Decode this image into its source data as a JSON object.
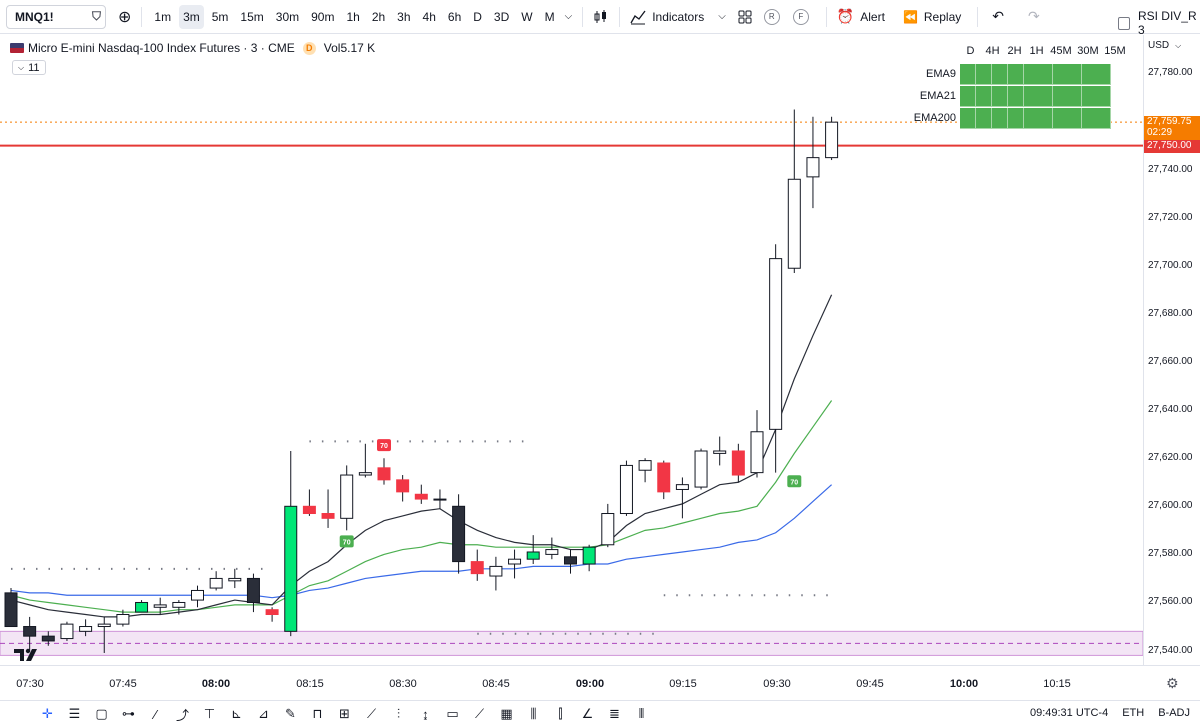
{
  "toolbar": {
    "symbol": "MNQ1!",
    "intervals": [
      "1m",
      "3m",
      "5m",
      "15m",
      "30m",
      "90m",
      "1h",
      "2h",
      "3h",
      "4h",
      "6h",
      "D",
      "3D",
      "W",
      "M"
    ],
    "active_interval": "3m",
    "indicators_label": "Indicators",
    "alert_label": "Alert",
    "replay_label": "Replay",
    "badge_r": "R",
    "badge_f": "F",
    "layout_label": "RSI DIV_R 3"
  },
  "legend": {
    "title": "Micro E-mini Nasdaq-100 Index Futures · 3 · CME",
    "badge": "D",
    "volume": "Vol",
    "volume_value": "5.17 K",
    "sub": "11"
  },
  "timeframe_header": [
    "D",
    "4H",
    "2H",
    "1H",
    "45M",
    "30M",
    "15M"
  ],
  "ema_table": [
    {
      "label": "EMA9",
      "status": "bullish"
    },
    {
      "label": "EMA21",
      "status": "bullish"
    },
    {
      "label": "EMA200",
      "status": "bullish"
    }
  ],
  "price_scale": {
    "currency": "USD",
    "labels": [
      "27,780.00",
      "27,740.00",
      "27,720.00",
      "27,700.00",
      "27,680.00",
      "27,660.00",
      "27,640.00",
      "27,620.00",
      "27,600.00",
      "27,580.00",
      "27,560.00",
      "27,540.00"
    ],
    "current_price": "27,759.75",
    "countdown": "02:29",
    "level_price": "27,750.00",
    "current_color": "#f57c00",
    "level_color": "#e53935"
  },
  "time_axis": {
    "labels": [
      {
        "text": "07:30",
        "bold": false
      },
      {
        "text": "07:45",
        "bold": false
      },
      {
        "text": "08:00",
        "bold": true
      },
      {
        "text": "08:15",
        "bold": false
      },
      {
        "text": "08:30",
        "bold": false
      },
      {
        "text": "08:45",
        "bold": false
      },
      {
        "text": "09:00",
        "bold": true
      },
      {
        "text": "09:15",
        "bold": false
      },
      {
        "text": "09:30",
        "bold": false
      },
      {
        "text": "09:45",
        "bold": false
      },
      {
        "text": "10:00",
        "bold": true
      },
      {
        "text": "10:15",
        "bold": false
      }
    ]
  },
  "status_bar": {
    "clock": "09:49:31 UTC-4",
    "session": "ETH",
    "adjustment": "B-ADJ"
  },
  "rsi_marker_label": "70",
  "chart_data": {
    "type": "candlestick",
    "interval": "3m",
    "candles": [
      {
        "o": 27564,
        "h": 27566,
        "l": 27550,
        "c": 27550,
        "color": "bear"
      },
      {
        "o": 27550,
        "h": 27554,
        "l": 27540,
        "c": 27546,
        "color": "bear"
      },
      {
        "o": 27546,
        "h": 27548,
        "l": 27542,
        "c": 27544,
        "color": "bear"
      },
      {
        "o": 27545,
        "h": 27552,
        "l": 27544,
        "c": 27551,
        "color": "bull"
      },
      {
        "o": 27548,
        "h": 27553,
        "l": 27546,
        "c": 27550,
        "color": "bull"
      },
      {
        "o": 27550,
        "h": 27554,
        "l": 27539,
        "c": 27551,
        "color": "bull"
      },
      {
        "o": 27551,
        "h": 27557,
        "l": 27550,
        "c": 27555,
        "color": "bull"
      },
      {
        "o": 27556,
        "h": 27561,
        "l": 27556,
        "c": 27560,
        "color": "bullgreen"
      },
      {
        "o": 27558,
        "h": 27562,
        "l": 27555,
        "c": 27559,
        "color": "bull"
      },
      {
        "o": 27558,
        "h": 27561,
        "l": 27555,
        "c": 27560,
        "color": "bull"
      },
      {
        "o": 27561,
        "h": 27567,
        "l": 27558,
        "c": 27565,
        "color": "bull"
      },
      {
        "o": 27566,
        "h": 27573,
        "l": 27565,
        "c": 27570,
        "color": "bull"
      },
      {
        "o": 27569,
        "h": 27574,
        "l": 27566,
        "c": 27570,
        "color": "bull"
      },
      {
        "o": 27570,
        "h": 27572,
        "l": 27556,
        "c": 27560,
        "color": "bear"
      },
      {
        "o": 27557,
        "h": 27558,
        "l": 27552,
        "c": 27555,
        "color": "bearred"
      },
      {
        "o": 27548,
        "h": 27623,
        "l": 27546,
        "c": 27600,
        "color": "bullgreen"
      },
      {
        "o": 27600,
        "h": 27607,
        "l": 27596,
        "c": 27597,
        "color": "bearred"
      },
      {
        "o": 27597,
        "h": 27607,
        "l": 27591,
        "c": 27595,
        "color": "bearred"
      },
      {
        "o": 27595,
        "h": 27617,
        "l": 27590,
        "c": 27613,
        "color": "bull"
      },
      {
        "o": 27614,
        "h": 27626,
        "l": 27612,
        "c": 27613,
        "color": "bull"
      },
      {
        "o": 27616,
        "h": 27620,
        "l": 27609,
        "c": 27611,
        "color": "bearred"
      },
      {
        "o": 27611,
        "h": 27613,
        "l": 27602,
        "c": 27606,
        "color": "bearred"
      },
      {
        "o": 27605,
        "h": 27609,
        "l": 27601,
        "c": 27603,
        "color": "bearred"
      },
      {
        "o": 27603,
        "h": 27607,
        "l": 27599,
        "c": 27603,
        "color": "bull"
      },
      {
        "o": 27600,
        "h": 27605,
        "l": 27572,
        "c": 27577,
        "color": "bear"
      },
      {
        "o": 27577,
        "h": 27582,
        "l": 27569,
        "c": 27572,
        "color": "bearred"
      },
      {
        "o": 27571,
        "h": 27579,
        "l": 27565,
        "c": 27575,
        "color": "bull"
      },
      {
        "o": 27576,
        "h": 27582,
        "l": 27570,
        "c": 27578,
        "color": "bull"
      },
      {
        "o": 27578,
        "h": 27588,
        "l": 27576,
        "c": 27581,
        "color": "bullgreen"
      },
      {
        "o": 27580,
        "h": 27587,
        "l": 27578,
        "c": 27582,
        "color": "bull"
      },
      {
        "o": 27579,
        "h": 27582,
        "l": 27572,
        "c": 27576,
        "color": "bear"
      },
      {
        "o": 27576,
        "h": 27584,
        "l": 27573,
        "c": 27583,
        "color": "bullgreen"
      },
      {
        "o": 27584,
        "h": 27601,
        "l": 27583,
        "c": 27597,
        "color": "bull"
      },
      {
        "o": 27597,
        "h": 27619,
        "l": 27596,
        "c": 27617,
        "color": "bull"
      },
      {
        "o": 27615,
        "h": 27620,
        "l": 27610,
        "c": 27619,
        "color": "bull"
      },
      {
        "o": 27618,
        "h": 27619,
        "l": 27603,
        "c": 27606,
        "color": "bearred"
      },
      {
        "o": 27607,
        "h": 27612,
        "l": 27595,
        "c": 27609,
        "color": "bull"
      },
      {
        "o": 27608,
        "h": 27624,
        "l": 27607,
        "c": 27623,
        "color": "bull"
      },
      {
        "o": 27622,
        "h": 27629,
        "l": 27617,
        "c": 27623,
        "color": "bull"
      },
      {
        "o": 27623,
        "h": 27626,
        "l": 27610,
        "c": 27613,
        "color": "bearred"
      },
      {
        "o": 27614,
        "h": 27640,
        "l": 27612,
        "c": 27631,
        "color": "bull"
      },
      {
        "o": 27632,
        "h": 27709,
        "l": 27614,
        "c": 27703,
        "color": "bull"
      },
      {
        "o": 27699,
        "h": 27765,
        "l": 27697,
        "c": 27736,
        "color": "bull"
      },
      {
        "o": 27737,
        "h": 27762,
        "l": 27724,
        "c": 27745,
        "color": "bull"
      },
      {
        "o": 27745,
        "h": 27762,
        "l": 27744,
        "c": 27759.75,
        "color": "bull"
      }
    ],
    "ema9": [
      27561,
      27559,
      27557,
      27556,
      27555,
      27554,
      27554,
      27555,
      27555,
      27556,
      27557,
      27559,
      27561,
      27560,
      27559,
      27567,
      27573,
      27577,
      27584,
      27590,
      27594,
      27596,
      27598,
      27599,
      27594,
      27590,
      27587,
      27585,
      27584,
      27584,
      27582,
      27582,
      27585,
      27592,
      27597,
      27599,
      27601,
      27605,
      27609,
      27610,
      27614,
      27632,
      27653,
      27671,
      27688
    ],
    "ema21": [
      27563,
      27561,
      27560,
      27559,
      27558,
      27557,
      27556,
      27556,
      27556,
      27557,
      27557,
      27558,
      27559,
      27559,
      27559,
      27563,
      27567,
      27569,
      27573,
      27577,
      27580,
      27582,
      27583,
      27585,
      27584,
      27584,
      27583,
      27583,
      27583,
      27583,
      27583,
      27583,
      27584,
      27587,
      27590,
      27591,
      27593,
      27595,
      27597,
      27598,
      27600,
      27610,
      27622,
      27633,
      27644
    ],
    "ema_blue": [
      27565,
      27564,
      27564,
      27563,
      27563,
      27563,
      27563,
      27563,
      27563,
      27563,
      27563,
      27563,
      27563,
      27563,
      27562,
      27563,
      27565,
      27566,
      27568,
      27570,
      27571,
      27572,
      27573,
      27573,
      27573,
      27574,
      27574,
      27574,
      27575,
      27575,
      27575,
      27576,
      27576,
      27578,
      27579,
      27580,
      27581,
      27582,
      27583,
      27585,
      27586,
      27589,
      27595,
      27602,
      27609
    ],
    "rsi_markers": [
      {
        "index": 18,
        "price": 27585,
        "type": "oversold-bull"
      },
      {
        "index": 20,
        "price": 27625,
        "type": "overbought-bear"
      },
      {
        "index": 42,
        "price": 27610,
        "type": "oversold-bull"
      }
    ],
    "levels": {
      "current": 27759.75,
      "resistance": 27750,
      "zone_low": 27538,
      "zone_high": 27548
    },
    "y_range": [
      27534,
      27796
    ]
  }
}
